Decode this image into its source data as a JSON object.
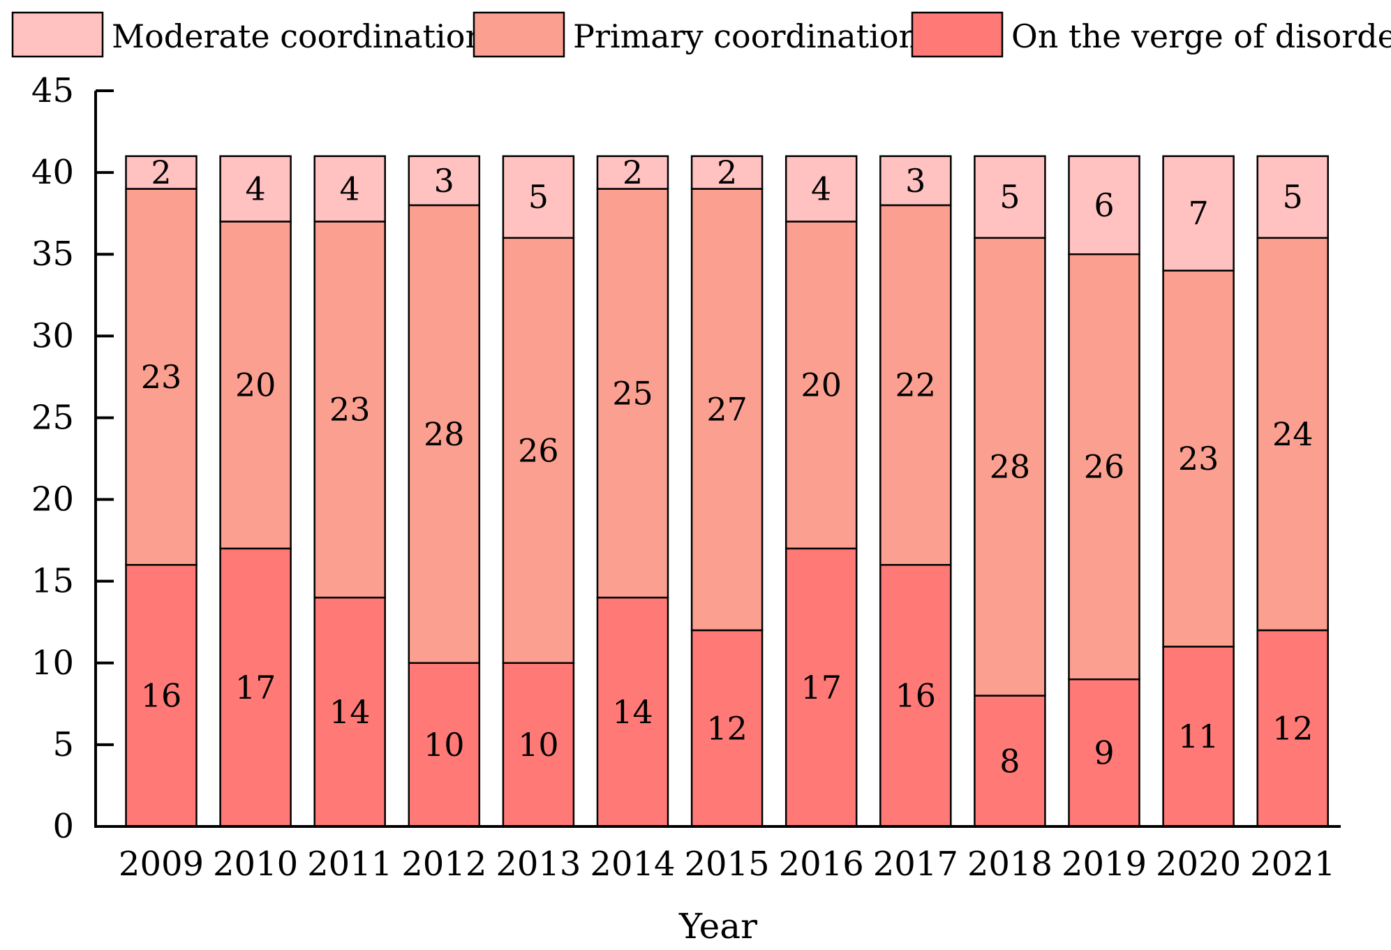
{
  "chart_data": {
    "type": "bar",
    "stacked": true,
    "title": "",
    "xlabel": "Year",
    "ylabel": "",
    "ylim": [
      0,
      45
    ],
    "yticks": [
      0,
      5,
      10,
      15,
      20,
      25,
      30,
      35,
      40,
      45
    ],
    "grid": false,
    "legend_position": "top",
    "categories": [
      "2009",
      "2010",
      "2011",
      "2012",
      "2013",
      "2014",
      "2015",
      "2016",
      "2017",
      "2018",
      "2019",
      "2020",
      "2021"
    ],
    "series": [
      {
        "name": "On the verge of disorder",
        "color": "#ff7a77",
        "values": [
          16,
          17,
          14,
          10,
          10,
          14,
          12,
          17,
          16,
          8,
          9,
          11,
          12
        ]
      },
      {
        "name": "Primary coordination",
        "color": "#fba090",
        "values": [
          23,
          20,
          23,
          28,
          26,
          25,
          27,
          20,
          22,
          28,
          26,
          23,
          24
        ]
      },
      {
        "name": "Moderate coordination",
        "color": "#ffc2c1",
        "values": [
          2,
          4,
          4,
          3,
          5,
          2,
          2,
          4,
          3,
          5,
          6,
          7,
          5
        ]
      }
    ],
    "legend_order": [
      "Moderate coordination",
      "Primary coordination",
      "On the verge of disorder"
    ]
  }
}
